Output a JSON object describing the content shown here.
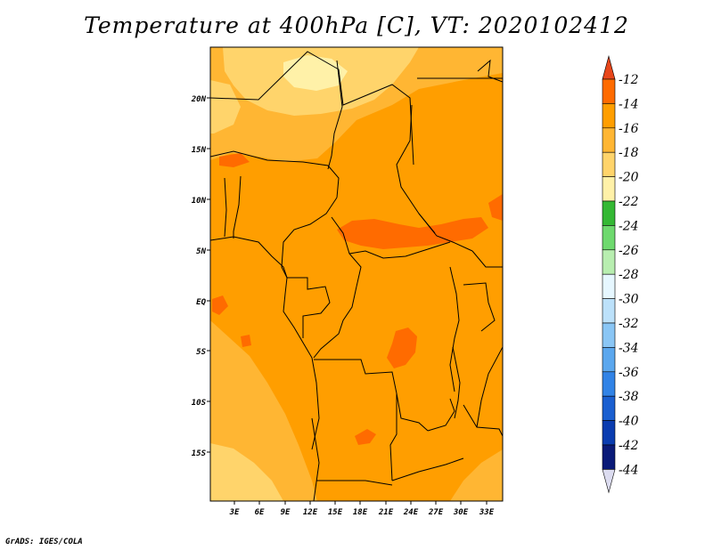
{
  "title": "Temperature at 400hPa [C], VT: 2020102412",
  "credit": "GrADS: IGES/COLA",
  "map": {
    "variable": "Temperature at 400hPa",
    "units": "C",
    "valid_time": "2020102412",
    "lat_labels": [
      "20N",
      "15N",
      "10N",
      "5N",
      "EQ",
      "5S",
      "10S",
      "15S"
    ],
    "lon_labels": [
      "3E",
      "6E",
      "9E",
      "12E",
      "15E",
      "18E",
      "21E",
      "24E",
      "27E",
      "30E",
      "33E"
    ]
  },
  "legend": {
    "labels": [
      "-12",
      "-14",
      "-16",
      "-18",
      "-20",
      "-22",
      "-24",
      "-26",
      "-28",
      "-30",
      "-32",
      "-34",
      "-36",
      "-38",
      "-40",
      "-42",
      "-44"
    ],
    "colors": [
      "#e8461a",
      "#ff6b00",
      "#ff9e00",
      "#ffb633",
      "#ffd46b",
      "#fff1a8",
      "#34b834",
      "#6ed96e",
      "#b8eeb0",
      "#e6f7ff",
      "#bce1fa",
      "#8ac6f5",
      "#5ba7ee",
      "#3183e6",
      "#1a5fd0",
      "#0a3cb0",
      "#0a1a78",
      "#dcdcf0"
    ]
  },
  "colors": {
    "warm_core": "#ff6b00",
    "base": "#ff9e00",
    "cool": "#ffb633",
    "coolest": "#ffd46b",
    "pale": "#fff1a8",
    "border": "#000000"
  }
}
